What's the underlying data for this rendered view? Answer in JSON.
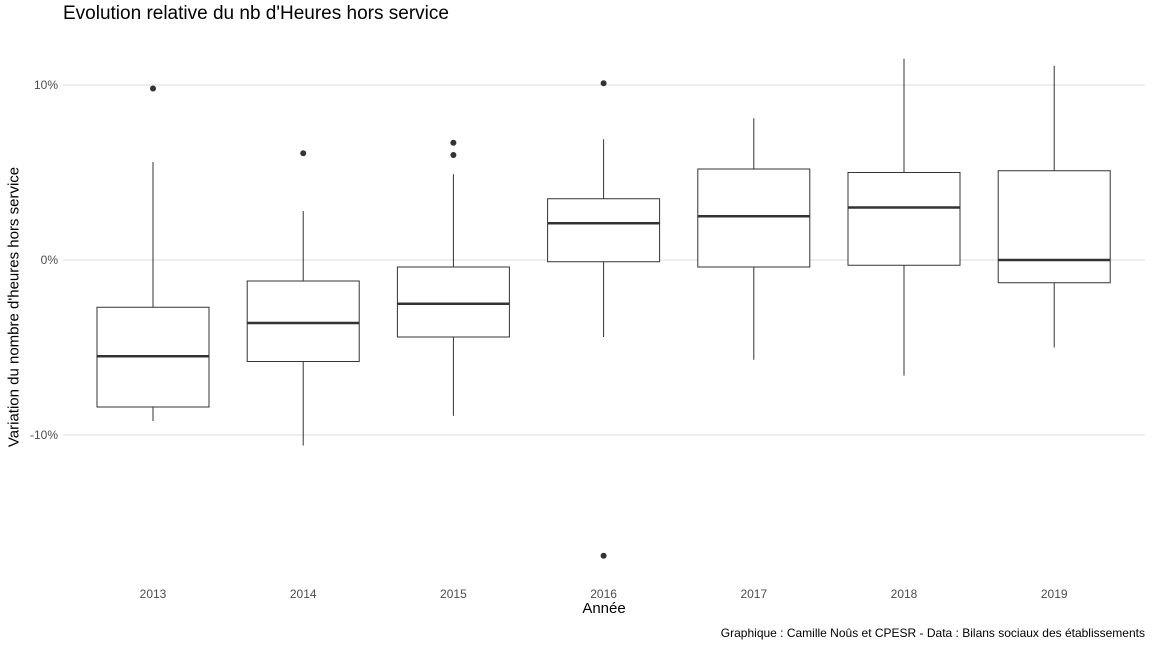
{
  "chart_data": {
    "type": "boxplot",
    "title": "Evolution relative du nb d'Heures hors service",
    "xlabel": "Année",
    "ylabel": "Variation du nombre d'heures hors service",
    "caption": "Graphique : Camille Noûs et CPESR - Data : Bilans sociaux des établissements",
    "y_ticks": [
      {
        "value": 10,
        "label": "10%"
      },
      {
        "value": 0,
        "label": "0%"
      },
      {
        "value": -10,
        "label": "-10%"
      }
    ],
    "ylim": [
      -18.5,
      12.5
    ],
    "grid": true,
    "categories": [
      "2013",
      "2014",
      "2015",
      "2016",
      "2017",
      "2018",
      "2019"
    ],
    "boxes": [
      {
        "category": "2013",
        "whisker_low": -9.2,
        "q1": -8.4,
        "median": -5.5,
        "q3": -2.7,
        "whisker_high": 5.6,
        "outliers": [
          9.8
        ]
      },
      {
        "category": "2014",
        "whisker_low": -10.6,
        "q1": -5.8,
        "median": -3.6,
        "q3": -1.2,
        "whisker_high": 2.8,
        "outliers": [
          6.1
        ]
      },
      {
        "category": "2015",
        "whisker_low": -8.9,
        "q1": -4.4,
        "median": -2.5,
        "q3": -0.4,
        "whisker_high": 4.9,
        "outliers": [
          6.7,
          6.0
        ]
      },
      {
        "category": "2016",
        "whisker_low": -4.4,
        "q1": -0.1,
        "median": 2.1,
        "q3": 3.5,
        "whisker_high": 6.9,
        "outliers": [
          10.1,
          -16.9
        ]
      },
      {
        "category": "2017",
        "whisker_low": -5.7,
        "q1": -0.4,
        "median": 2.5,
        "q3": 5.2,
        "whisker_high": 8.1,
        "outliers": []
      },
      {
        "category": "2018",
        "whisker_low": -6.6,
        "q1": -0.3,
        "median": 3.0,
        "q3": 5.0,
        "whisker_high": 11.5,
        "outliers": []
      },
      {
        "category": "2019",
        "whisker_low": -5.0,
        "q1": -1.3,
        "median": 0.0,
        "q3": 5.1,
        "whisker_high": 11.1,
        "outliers": []
      }
    ]
  }
}
